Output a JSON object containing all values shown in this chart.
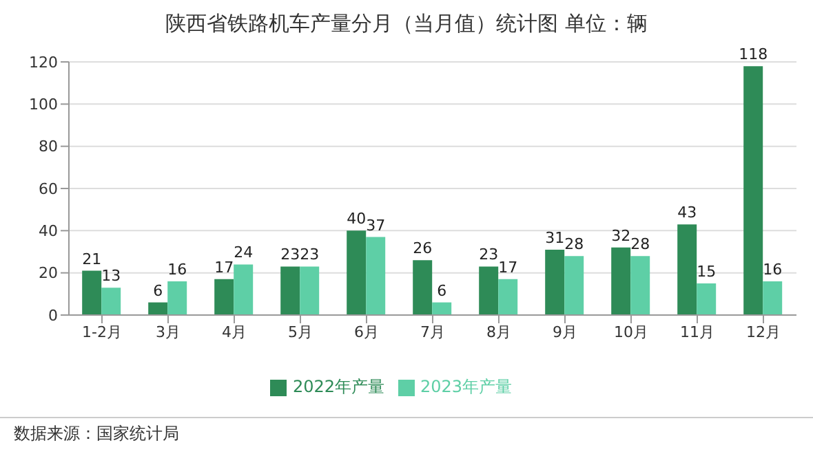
{
  "chart_data": {
    "type": "bar",
    "title": "陕西省铁路机车产量分月（当月值）统计图 单位：辆",
    "categories": [
      "1-2月",
      "3月",
      "4月",
      "5月",
      "6月",
      "7月",
      "8月",
      "9月",
      "10月",
      "11月",
      "12月"
    ],
    "series": [
      {
        "name": "2022年产量",
        "color": "#2e8b57",
        "values": [
          21,
          6,
          17,
          23,
          40,
          26,
          23,
          31,
          32,
          43,
          118
        ]
      },
      {
        "name": "2023年产量",
        "color": "#5ecfa6",
        "values": [
          13,
          16,
          24,
          23,
          37,
          6,
          17,
          28,
          28,
          15,
          16
        ]
      }
    ],
    "ylim": [
      0,
      120
    ],
    "yticks": [
      0,
      20,
      40,
      60,
      80,
      100,
      120
    ],
    "grid": "y",
    "legend": "bottom",
    "data_labels": true,
    "annotations": [
      "数据来源：国家统计局"
    ]
  }
}
